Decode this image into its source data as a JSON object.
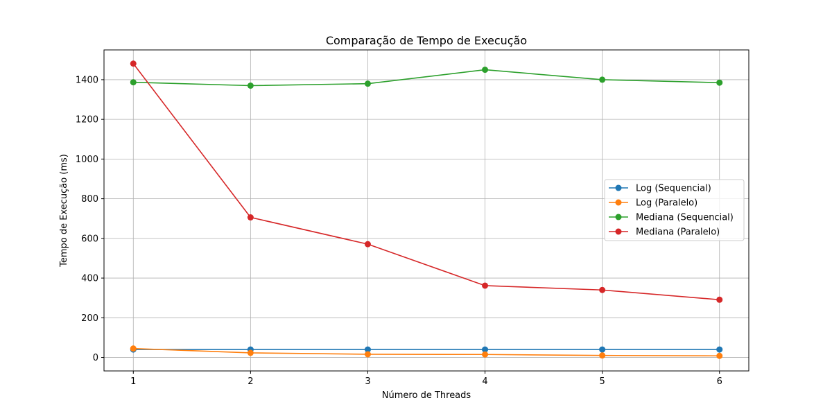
{
  "chart_data": {
    "type": "line",
    "title": "Comparação de Tempo de Execução",
    "xlabel": "Número de Threads",
    "ylabel": "Tempo de Execução (ms)",
    "x": [
      1,
      2,
      3,
      4,
      5,
      6
    ],
    "xlim": [
      0.75,
      6.25
    ],
    "ylim": [
      -68,
      1550
    ],
    "xticks": [
      1,
      2,
      3,
      4,
      5,
      6
    ],
    "yticks": [
      0,
      200,
      400,
      600,
      800,
      1000,
      1200,
      1400
    ],
    "grid": true,
    "legend_position": "center-right",
    "series": [
      {
        "name": "Log (Sequencial)",
        "color": "#1f77b4",
        "marker": "circle",
        "values": [
          40,
          40,
          40,
          40,
          40,
          40
        ]
      },
      {
        "name": "Log (Paralelo)",
        "color": "#ff7f0e",
        "marker": "circle",
        "values": [
          45,
          23,
          16,
          15,
          10,
          8
        ]
      },
      {
        "name": "Mediana (Sequencial)",
        "color": "#2ca02c",
        "marker": "circle",
        "values": [
          1387,
          1370,
          1380,
          1450,
          1400,
          1385
        ]
      },
      {
        "name": "Mediana (Paralelo)",
        "color": "#d62728",
        "marker": "circle",
        "values": [
          1481,
          706,
          571,
          362,
          340,
          291
        ]
      }
    ]
  }
}
